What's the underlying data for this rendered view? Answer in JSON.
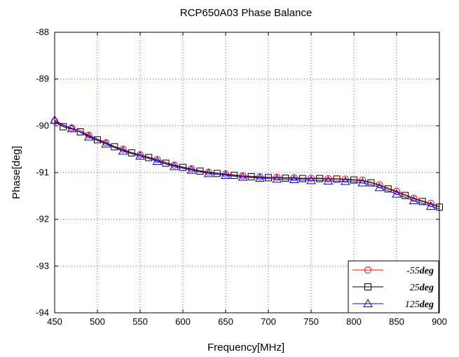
{
  "chart_data": {
    "type": "line",
    "title": "RCP650A03 Phase Balance",
    "xlabel": "Frequency[MHz]",
    "ylabel": "Phase[deg]",
    "xlim": [
      450,
      900
    ],
    "ylim": [
      -94,
      -88
    ],
    "xticks": [
      450,
      500,
      550,
      600,
      650,
      700,
      750,
      800,
      850,
      900
    ],
    "yticks": [
      -94,
      -93,
      -92,
      -91,
      -90,
      -89,
      -88
    ],
    "grid": true,
    "legend_position": "bottom-right",
    "x": [
      450,
      460,
      470,
      480,
      490,
      500,
      510,
      520,
      530,
      540,
      550,
      560,
      570,
      580,
      590,
      600,
      610,
      620,
      630,
      640,
      650,
      660,
      670,
      680,
      690,
      700,
      710,
      720,
      730,
      740,
      750,
      760,
      770,
      780,
      790,
      800,
      810,
      820,
      830,
      840,
      850,
      860,
      870,
      880,
      890,
      900
    ],
    "series": [
      {
        "name": "-55deg",
        "legend_label": "-55",
        "legend_unit": "deg",
        "color": "#ff0000",
        "marker": "circle",
        "values": [
          -89.9,
          -90.0,
          -90.05,
          -90.1,
          -90.2,
          -90.28,
          -90.36,
          -90.44,
          -90.5,
          -90.57,
          -90.62,
          -90.67,
          -90.72,
          -90.78,
          -90.84,
          -90.88,
          -90.92,
          -90.96,
          -90.99,
          -91.01,
          -91.03,
          -91.05,
          -91.07,
          -91.08,
          -91.09,
          -91.1,
          -91.1,
          -91.11,
          -91.11,
          -91.12,
          -91.12,
          -91.12,
          -91.13,
          -91.13,
          -91.14,
          -91.15,
          -91.16,
          -91.2,
          -91.26,
          -91.33,
          -91.4,
          -91.47,
          -91.55,
          -91.6,
          -91.66,
          -91.72
        ]
      },
      {
        "name": "25deg",
        "legend_label": "25",
        "legend_unit": "deg",
        "color": "#000000",
        "marker": "square",
        "values": [
          -89.92,
          -90.02,
          -90.07,
          -90.13,
          -90.22,
          -90.3,
          -90.37,
          -90.45,
          -90.52,
          -90.58,
          -90.63,
          -90.68,
          -90.74,
          -90.8,
          -90.85,
          -90.89,
          -90.93,
          -90.97,
          -91.0,
          -91.02,
          -91.04,
          -91.06,
          -91.08,
          -91.09,
          -91.1,
          -91.11,
          -91.11,
          -91.12,
          -91.12,
          -91.13,
          -91.13,
          -91.13,
          -91.14,
          -91.14,
          -91.15,
          -91.16,
          -91.18,
          -91.22,
          -91.28,
          -91.35,
          -91.42,
          -91.49,
          -91.56,
          -91.62,
          -91.68,
          -91.74
        ]
      },
      {
        "name": "125deg",
        "legend_label": "125",
        "legend_unit": "deg",
        "color": "#0000ff",
        "marker": "triangle",
        "values": [
          -89.88,
          -89.98,
          -90.06,
          -90.14,
          -90.24,
          -90.32,
          -90.39,
          -90.47,
          -90.54,
          -90.6,
          -90.65,
          -90.7,
          -90.76,
          -90.82,
          -90.87,
          -90.91,
          -90.95,
          -90.99,
          -91.02,
          -91.04,
          -91.06,
          -91.08,
          -91.1,
          -91.11,
          -91.12,
          -91.13,
          -91.14,
          -91.15,
          -91.15,
          -91.16,
          -91.17,
          -91.17,
          -91.18,
          -91.18,
          -91.19,
          -91.2,
          -91.22,
          -91.26,
          -91.32,
          -91.39,
          -91.46,
          -91.53,
          -91.6,
          -91.66,
          -91.72,
          -91.78
        ]
      }
    ]
  }
}
